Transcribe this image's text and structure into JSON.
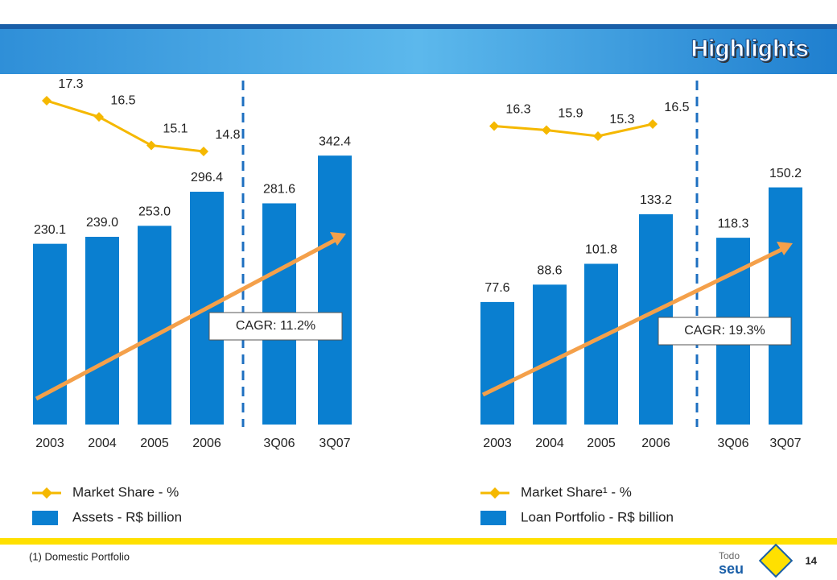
{
  "title": "Highlights",
  "footnote": "(1) Domestic Portfolio",
  "page_number": "14",
  "logo": [
    "Todo",
    "seu"
  ],
  "chart_data": [
    {
      "type": "combo",
      "categories": [
        "2003",
        "2004",
        "2005",
        "2006",
        "3Q06",
        "3Q07"
      ],
      "series": [
        {
          "name": "Market Share - %",
          "type": "line",
          "color": "#f5b800",
          "values": [
            17.3,
            16.5,
            15.1,
            14.8,
            null,
            null
          ]
        },
        {
          "name": "Assets - R$ billion",
          "type": "bar",
          "color": "#0a7fd0",
          "values": [
            230.1,
            239.0,
            253.0,
            296.4,
            281.6,
            342.4
          ],
          "value_labels": [
            "230.1",
            "239.0",
            "253.0",
            "296.4",
            "281.6",
            "342.4"
          ]
        }
      ],
      "annotation": "CAGR: 11.2%"
    },
    {
      "type": "combo",
      "categories": [
        "2003",
        "2004",
        "2005",
        "2006",
        "3Q06",
        "3Q07"
      ],
      "series": [
        {
          "name": "Market Share¹ - %",
          "type": "line",
          "color": "#f5b800",
          "values": [
            16.3,
            15.9,
            15.3,
            16.5,
            null,
            null
          ]
        },
        {
          "name": "Loan Portfolio - R$ billion",
          "type": "bar",
          "color": "#0a7fd0",
          "values": [
            77.6,
            88.6,
            101.8,
            133.2,
            118.3,
            150.2
          ]
        }
      ],
      "annotation": "CAGR: 19.3%"
    }
  ]
}
